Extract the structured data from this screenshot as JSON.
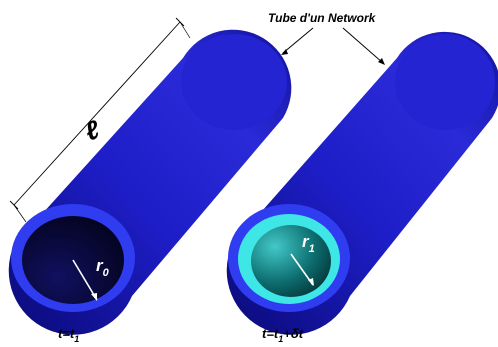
{
  "network_label": "Tube d'un Network",
  "left_tube": {
    "length_symbol": "ℓ",
    "radius_symbol": "r",
    "radius_subscript": "0",
    "time_caption_prefix": "t=t",
    "time_caption_subscript": "1",
    "time_caption_suffix": "",
    "colors": {
      "outer": "#1c1cc4",
      "ring": "#2f3cf0",
      "bore": "#06063a"
    }
  },
  "right_tube": {
    "radius_symbol": "r",
    "radius_subscript": "1",
    "time_caption_prefix": "t=t",
    "time_caption_subscript": "1",
    "time_caption_suffix": "+δt",
    "colors": {
      "outer": "#1c1cc4",
      "ring_outer": "#2f3cf0",
      "ring_inner": "#3ee6e6",
      "bore": "#0a5a5a"
    }
  }
}
